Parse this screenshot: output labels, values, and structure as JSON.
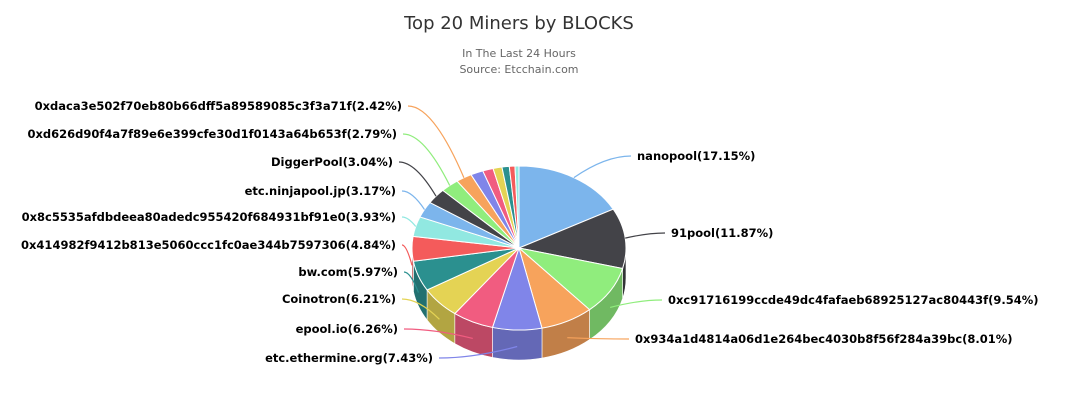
{
  "chart_data": {
    "type": "pie",
    "title": "Top 20 Miners by BLOCKS",
    "subtitle_line1": "In The Last 24 Hours",
    "subtitle_line2": "Source: Etcchain.com",
    "three_d": true,
    "slices": [
      {
        "label": "nanopool(17.15%)",
        "value": 17.15,
        "color": "#7cb5ec"
      },
      {
        "label": "91pool(11.87%)",
        "value": 11.87,
        "color": "#434348"
      },
      {
        "label": "0xc91716199ccde49dc4fafaeb68925127ac80443f(9.54%)",
        "value": 9.54,
        "color": "#90ed7d"
      },
      {
        "label": "0x934a1d4814a06d1e264bec4030b8f56f284a39bc(8.01%)",
        "value": 8.01,
        "color": "#f7a35c"
      },
      {
        "label": "etc.ethermine.org(7.43%)",
        "value": 7.43,
        "color": "#8085e9"
      },
      {
        "label": "epool.io(6.26%)",
        "value": 6.26,
        "color": "#f15c80"
      },
      {
        "label": "Coinotron(6.21%)",
        "value": 6.21,
        "color": "#e4d354"
      },
      {
        "label": "bw.com(5.97%)",
        "value": 5.97,
        "color": "#2b908f"
      },
      {
        "label": "0x414982f9412b813e5060ccc1fc0ae344b7597306(4.84%)",
        "value": 4.84,
        "color": "#f45b5b"
      },
      {
        "label": "0x8c5535afdbdeea80adedc955420f684931bf91e0(3.93%)",
        "value": 3.93,
        "color": "#91e8e1"
      },
      {
        "label": "etc.ninjapool.jp(3.17%)",
        "value": 3.17,
        "color": "#7cb5ec"
      },
      {
        "label": "DiggerPool(3.04%)",
        "value": 3.04,
        "color": "#434348"
      },
      {
        "label": "0xd626d90f4a7f89e6e399cfe30d1f0143a64b653f(2.79%)",
        "value": 2.79,
        "color": "#90ed7d"
      },
      {
        "label": "0xdaca3e502f70eb80b66dff5a89589085c3f3a71f(2.42%)",
        "value": 2.42,
        "color": "#f7a35c"
      },
      {
        "label": "",
        "value": 1.9,
        "color": "#8085e9"
      },
      {
        "label": "",
        "value": 1.6,
        "color": "#f15c80"
      },
      {
        "label": "",
        "value": 1.35,
        "color": "#e4d354"
      },
      {
        "label": "",
        "value": 1.1,
        "color": "#2b908f"
      },
      {
        "label": "",
        "value": 0.85,
        "color": "#f45b5b"
      },
      {
        "label": "",
        "value": 0.6,
        "color": "#91e8e1"
      }
    ]
  }
}
